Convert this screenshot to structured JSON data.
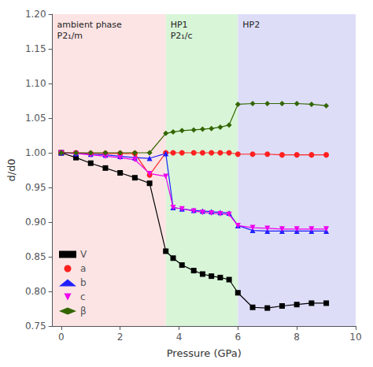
{
  "chart_data": {
    "type": "line",
    "xlabel": "Pressure (GPa)",
    "ylabel": "d/d0",
    "xlim": [
      -0.3,
      10
    ],
    "ylim": [
      0.75,
      1.2
    ],
    "xticks": [
      0,
      2,
      4,
      6,
      8,
      10
    ],
    "yticks": [
      0.75,
      {
        "value": 0.8,
        "label": "0.80"
      },
      0.85,
      {
        "value": 0.9,
        "label": "0.90"
      },
      0.95,
      {
        "value": 1.0,
        "label": "1.00"
      },
      1.05,
      {
        "value": 1.1,
        "label": "1.10"
      },
      1.15,
      {
        "value": 1.2,
        "label": "1.20"
      }
    ],
    "grid": false,
    "legend": "lower left",
    "phases": [
      {
        "end": 3.55,
        "color": "#fce4e4",
        "labels": [
          "ambient phase",
          "P2₁/m"
        ]
      },
      {
        "end": 6.0,
        "color": "#d8f5d8",
        "labels": [
          "HP1",
          "P2₁/c"
        ]
      },
      {
        "color": "#ddddf8",
        "labels": [
          "HP2"
        ]
      }
    ],
    "x": [
      0.0,
      0.5,
      1.0,
      1.5,
      2.0,
      2.5,
      3.0,
      3.55,
      3.8,
      4.1,
      4.5,
      4.8,
      5.1,
      5.4,
      5.7,
      6.0,
      6.5,
      7.0,
      7.5,
      8.0,
      8.5,
      9.0
    ],
    "series": [
      {
        "name": "V",
        "color": "#000000",
        "marker": "square",
        "values": [
          1.0,
          0.993,
          0.985,
          0.978,
          0.971,
          0.964,
          0.956,
          0.858,
          0.848,
          0.838,
          0.83,
          0.825,
          0.822,
          0.82,
          0.817,
          0.798,
          0.777,
          0.776,
          0.779,
          0.781,
          0.783,
          0.783
        ]
      },
      {
        "name": "a",
        "color": "#ff2020",
        "marker": "circle",
        "values": [
          1.0,
          1.0,
          0.999,
          0.999,
          0.999,
          0.999,
          0.968,
          1.0,
          1.0,
          1.0,
          1.0,
          1.0,
          1.0,
          1.0,
          1.0,
          0.998,
          0.998,
          0.998,
          0.997,
          0.997,
          0.997,
          0.997
        ]
      },
      {
        "name": "b",
        "color": "#2020ff",
        "marker": "triangle-up",
        "values": [
          1.0,
          0.999,
          0.998,
          0.997,
          0.995,
          0.993,
          0.992,
          0.999,
          0.921,
          0.919,
          0.917,
          0.916,
          0.915,
          0.914,
          0.913,
          0.895,
          0.888,
          0.887,
          0.887,
          0.887,
          0.887,
          0.887
        ]
      },
      {
        "name": "c",
        "color": "#ee00ee",
        "marker": "triangle-down",
        "values": [
          1.0,
          0.999,
          0.997,
          0.995,
          0.993,
          0.99,
          0.97,
          0.966,
          0.921,
          0.919,
          0.916,
          0.914,
          0.913,
          0.912,
          0.911,
          0.895,
          0.892,
          0.891,
          0.89,
          0.89,
          0.89,
          0.89
        ]
      },
      {
        "name": "β",
        "color": "#336600",
        "marker": "diamond",
        "values": [
          1.0,
          1.0,
          1.0,
          1.0,
          1.0,
          1.0,
          1.0,
          1.028,
          1.03,
          1.032,
          1.033,
          1.034,
          1.035,
          1.037,
          1.04,
          1.07,
          1.071,
          1.071,
          1.071,
          1.071,
          1.07,
          1.068
        ]
      }
    ]
  }
}
